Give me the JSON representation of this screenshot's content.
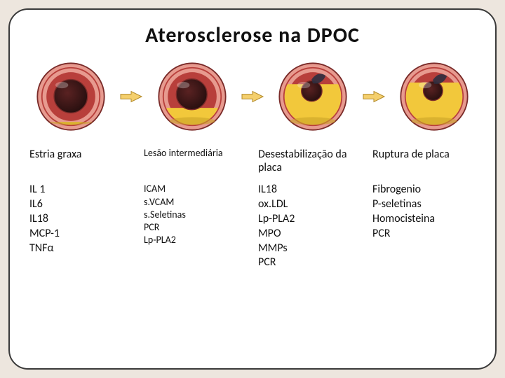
{
  "title": "Aterosclerose  na  DPOC",
  "colors": {
    "slide_bg": "#ffffff",
    "page_bg": "#ede6de",
    "border": "#3a3a3a",
    "text": "#111111",
    "artery_fibrous": "#e79a8f",
    "artery_muscle": "#b83f3b",
    "artery_border": "#7a2b29",
    "lumen": "#2a1010",
    "lumen_highlight": "#5a2222",
    "plaque": "#f2c83b",
    "plaque_shadow": "#caa328",
    "plaque_lesion": "#2f2f40",
    "arrow_fill": "#f4cf6d",
    "arrow_stroke": "#b28a2a"
  },
  "arrow": {
    "width": 34,
    "height": 20
  },
  "stages": [
    {
      "label": "Estria graxa",
      "label_fontsize": 16,
      "markers": [
        "IL 1",
        "IL6",
        "IL18",
        "MCP-1",
        "TNFα"
      ],
      "markers_fontsize": 16,
      "artery": {
        "plaque_coverage": 0.05,
        "lumen_r": 26,
        "lesion": false
      }
    },
    {
      "label": "Lesão intermediária",
      "label_fontsize": 14,
      "markers": [
        "ICAM",
        "s.VCAM",
        "s.Seletinas",
        "PCR",
        "Lp-PLA2"
      ],
      "markers_fontsize": 14,
      "artery": {
        "plaque_coverage": 0.3,
        "lumen_r": 24,
        "lesion": false
      }
    },
    {
      "label": "Desestabilização da placa",
      "label_fontsize": 16,
      "markers": [
        "IL18",
        "ox.LDL",
        "Lp-PLA2",
        "MPO",
        "MMPs",
        "PCR"
      ],
      "markers_fontsize": 16,
      "artery": {
        "plaque_coverage": 0.72,
        "lumen_r": 16,
        "lesion": true
      }
    },
    {
      "label": "Ruptura de placa",
      "label_fontsize": 16,
      "markers": [
        "Fibrogenio",
        "P-seletinas",
        "Homocisteina",
        "PCR"
      ],
      "markers_fontsize": 16,
      "artery": {
        "plaque_coverage": 0.75,
        "lumen_r": 15,
        "lesion": true
      }
    }
  ]
}
